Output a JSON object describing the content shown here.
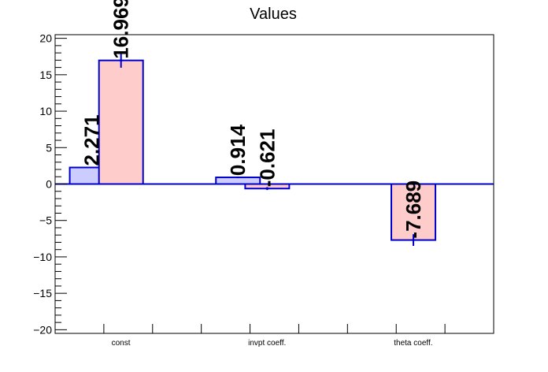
{
  "chart_data": {
    "type": "bar",
    "title": "Values",
    "xlabel": "",
    "ylabel": "",
    "categories": [
      "const",
      "invpt coeff.",
      "theta coeff."
    ],
    "ylim": [
      -20.5,
      20.5
    ],
    "yticks": [
      -20,
      -15,
      -10,
      -5,
      0,
      5,
      10,
      15,
      20
    ],
    "ytick_labels": [
      "−20",
      "−15",
      "−10",
      "−5",
      "0",
      "5",
      "10",
      "15",
      "20"
    ],
    "series": [
      {
        "values": [
          2.271,
          0.914,
          null
        ],
        "errors": [
          0,
          0,
          0
        ],
        "labels": [
          "2.271",
          "0.914",
          ""
        ],
        "fill": "#ccccff",
        "stroke": "#0000cc"
      },
      {
        "values": [
          16.969,
          -0.621,
          -7.689
        ],
        "errors": [
          1.0,
          0.2,
          0.8
        ],
        "labels": [
          "16.969",
          "-0.621",
          "-7.689"
        ],
        "fill": "#ffcccc",
        "stroke": "#0000cc"
      }
    ],
    "grid": false,
    "legend": "none",
    "colors": {
      "axis": "#000000",
      "zero_line": "#0000cc",
      "bar_stroke": "#0000cc"
    }
  }
}
